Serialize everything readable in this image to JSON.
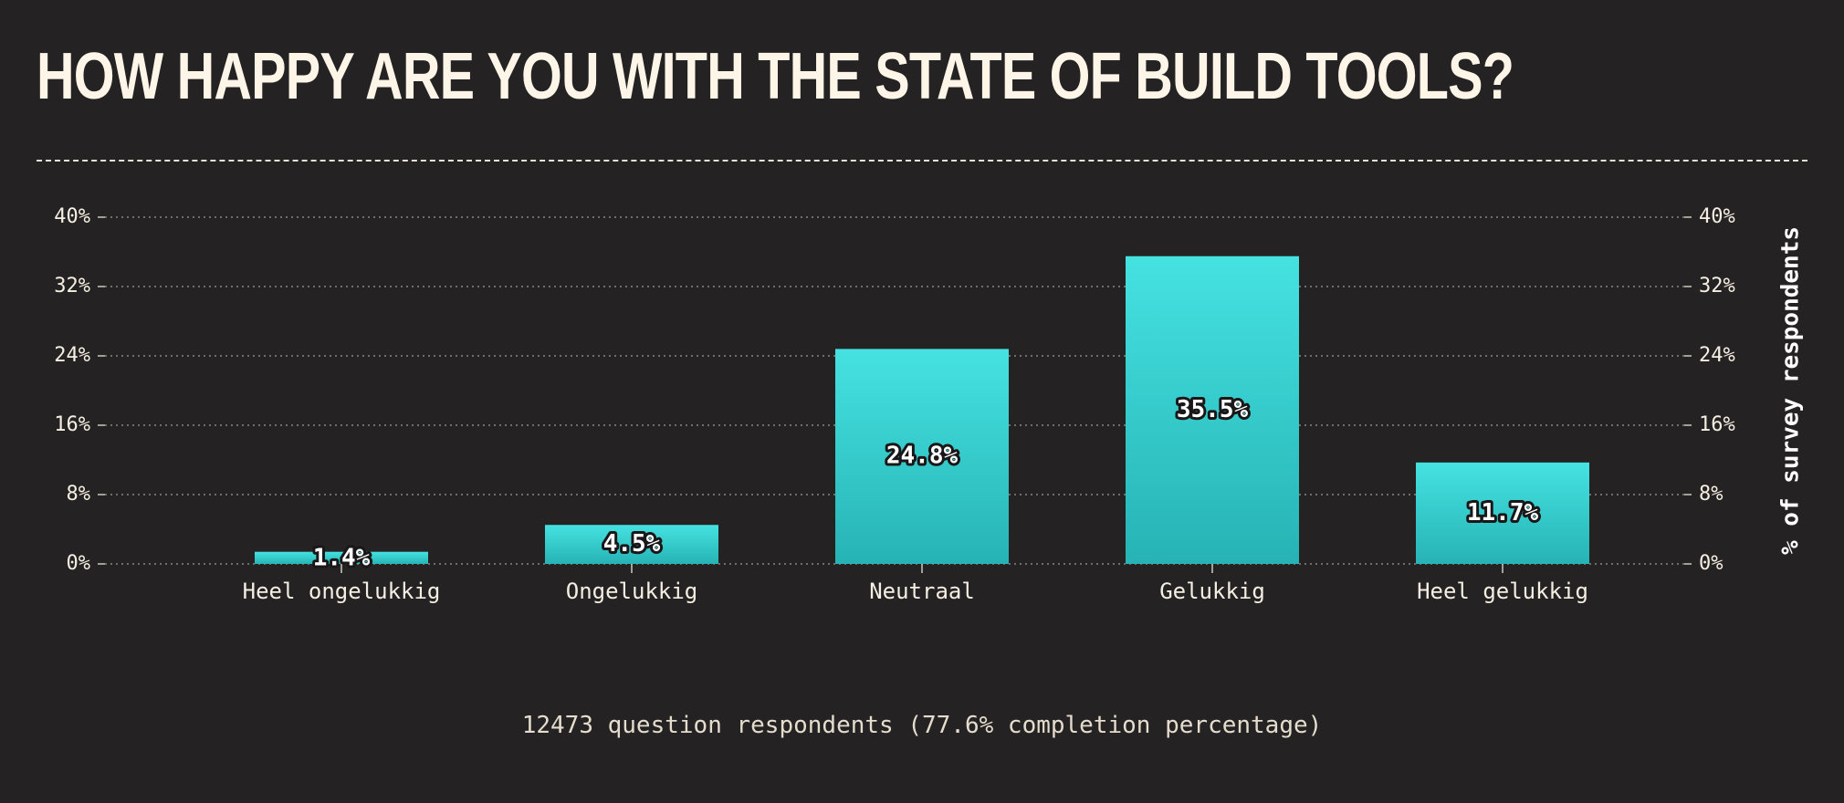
{
  "chart_data": {
    "type": "bar",
    "title": "HOW HAPPY ARE YOU WITH THE STATE OF BUILD TOOLS?",
    "categories": [
      "Heel ongelukkig",
      "Ongelukkig",
      "Neutraal",
      "Gelukkig",
      "Heel gelukkig"
    ],
    "values": [
      1.4,
      4.5,
      24.8,
      35.5,
      11.7
    ],
    "value_labels": [
      "1.4%",
      "4.5%",
      "24.8%",
      "35.5%",
      "11.7%"
    ],
    "xlabel": "",
    "ylabel": "% of survey respondents",
    "ylim": [
      0,
      40
    ],
    "yticks": [
      0,
      8,
      16,
      24,
      32,
      40
    ],
    "ytick_labels": [
      "0%",
      "8%",
      "16%",
      "24%",
      "32%",
      "40%"
    ],
    "grid": true,
    "secondary_axis": "right",
    "footnote": "12473 question respondents (77.6% completion percentage)"
  },
  "colors": {
    "background": "#252223",
    "bar_top": "#45e2e1",
    "bar_bottom": "#27b3b5",
    "grid": "#8a8680",
    "text": "#fdf6e8"
  }
}
